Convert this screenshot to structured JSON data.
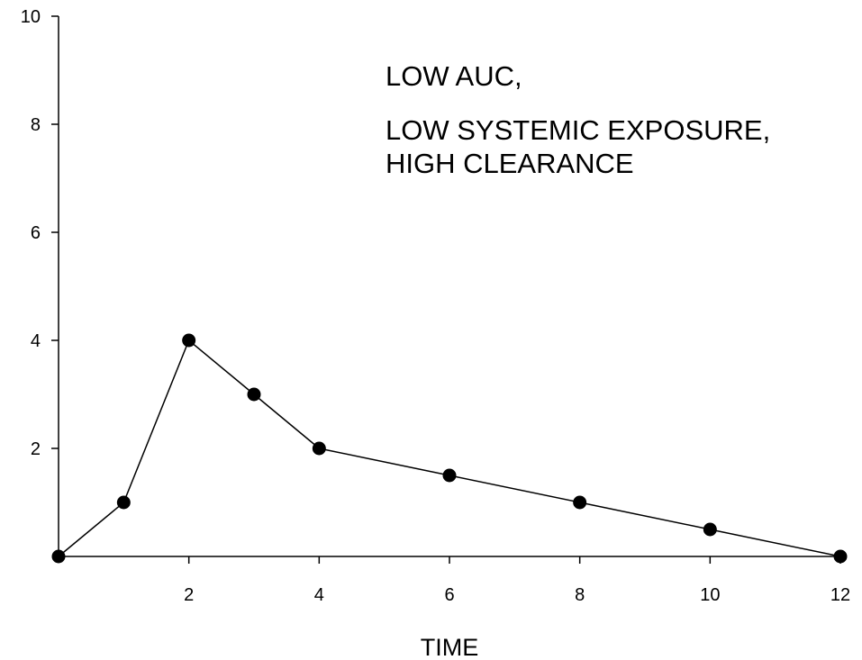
{
  "chart_data": {
    "type": "line",
    "title": "",
    "xlabel": "TIME",
    "ylabel": "",
    "xlim": [
      0,
      12
    ],
    "ylim": [
      0,
      10
    ],
    "x_ticks": [
      2,
      4,
      6,
      8,
      10,
      12
    ],
    "y_ticks": [
      2,
      4,
      6,
      8,
      10
    ],
    "grid": false,
    "series": [
      {
        "color": "#000000",
        "marker": "filled-circle",
        "x": [
          0,
          1,
          2,
          3,
          4,
          6,
          8,
          10,
          12
        ],
        "y": [
          0,
          1,
          4,
          3,
          2,
          1.5,
          1,
          0.5,
          0
        ]
      }
    ],
    "annotations": [
      "LOW AUC,",
      "LOW SYSTEMIC EXPOSURE,",
      "HIGH CLEARANCE"
    ]
  }
}
